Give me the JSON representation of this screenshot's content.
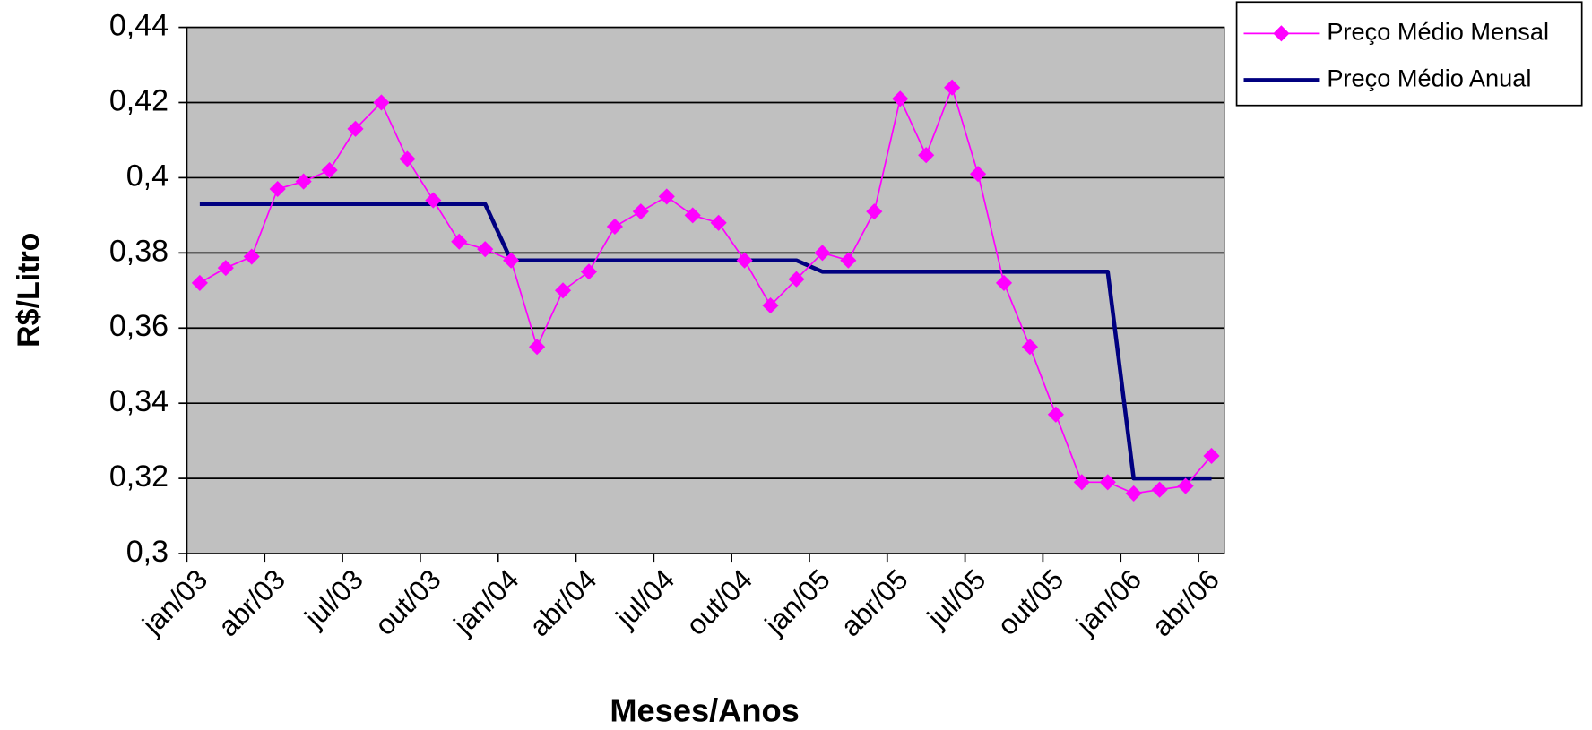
{
  "chart_data": {
    "type": "line",
    "x_label": "Meses/Anos",
    "y_label": "R$/Litro",
    "categories": [
      "jan/03",
      null,
      null,
      "abr/03",
      null,
      null,
      "jul/03",
      null,
      null,
      "out/03",
      null,
      null,
      "jan/04",
      null,
      null,
      "abr/04",
      null,
      null,
      "jul/04",
      null,
      null,
      "out/04",
      null,
      null,
      "jan/05",
      null,
      null,
      "abr/05",
      null,
      null,
      "jul/05",
      null,
      null,
      "out/05",
      null,
      null,
      "jan/06",
      null,
      null,
      "abr/06"
    ],
    "series": [
      {
        "name": "Preço Médio Mensal",
        "color": "#ff00ff",
        "marker": "diamond",
        "values": [
          0.372,
          0.376,
          0.379,
          0.397,
          0.399,
          0.402,
          0.413,
          0.42,
          0.405,
          0.394,
          0.383,
          0.381,
          0.378,
          0.355,
          0.37,
          0.375,
          0.387,
          0.391,
          0.395,
          0.39,
          0.388,
          0.378,
          0.366,
          0.373,
          0.38,
          0.378,
          0.391,
          0.421,
          0.406,
          0.424,
          0.401,
          0.372,
          0.355,
          0.337,
          0.319,
          0.319,
          0.316,
          0.317,
          0.318,
          0.326
        ]
      },
      {
        "name": "Preço Médio Anual",
        "color": "#000080",
        "values": [
          0.393,
          0.393,
          0.393,
          0.393,
          0.393,
          0.393,
          0.393,
          0.393,
          0.393,
          0.393,
          0.393,
          0.393,
          0.378,
          0.378,
          0.378,
          0.378,
          0.378,
          0.378,
          0.378,
          0.378,
          0.378,
          0.378,
          0.378,
          0.378,
          0.375,
          0.375,
          0.375,
          0.375,
          0.375,
          0.375,
          0.375,
          0.375,
          0.375,
          0.375,
          0.375,
          0.375,
          0.32,
          0.32,
          0.32,
          0.32
        ]
      }
    ],
    "ylim": [
      0.3,
      0.44
    ],
    "yticks": [
      {
        "value": 0.3,
        "label": "0,3"
      },
      {
        "value": 0.32,
        "label": "0,32"
      },
      {
        "value": 0.34,
        "label": "0,34"
      },
      {
        "value": 0.36,
        "label": "0,36"
      },
      {
        "value": 0.38,
        "label": "0,38"
      },
      {
        "value": 0.4,
        "label": "0,4"
      },
      {
        "value": 0.42,
        "label": "0,42"
      },
      {
        "value": 0.44,
        "label": "0,44"
      }
    ],
    "grid": true,
    "legend": "top-right",
    "plot_background": "#c0c0c0"
  }
}
